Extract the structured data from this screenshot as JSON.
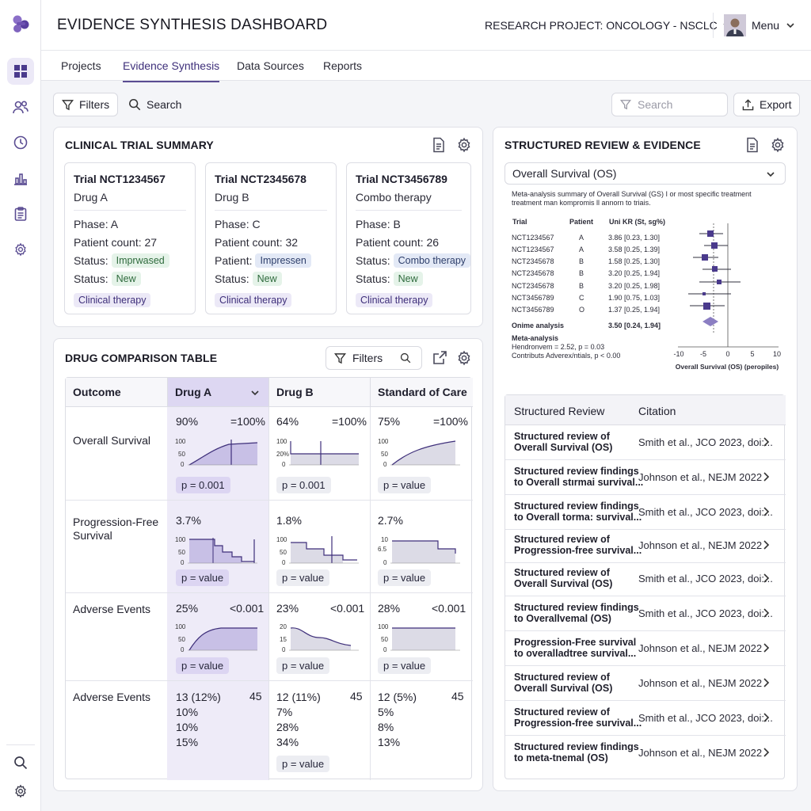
{
  "header": {
    "title": "EVIDENCE SYNTHESIS DASHBOARD",
    "project": "RESEARCH PROJECT: ONCOLOGY - NSCLC",
    "menu_label": "Menu"
  },
  "tabs": [
    {
      "label": "Projects"
    },
    {
      "label": "Evidence Synthesis"
    },
    {
      "label": "Data Sources"
    },
    {
      "label": "Reports"
    }
  ],
  "toolbar": {
    "filters_label": "Filters",
    "search_label": "Search",
    "search_placeholder": "Search",
    "export_label": "Export"
  },
  "trial_summary": {
    "title": "CLINICAL TRIAL SUMMARY",
    "cards": [
      {
        "trial": "Trial NCT1234567",
        "drug": "Drug A",
        "phase": "Phase: A",
        "patients": "Patient count: 27",
        "row3_label": "Status:",
        "row3_chip": "Imprwased",
        "row4_label": "Status:",
        "row4_chip": "New",
        "tag": "Clinical therapy"
      },
      {
        "trial": "Trial NCT2345678",
        "drug": "Drug B",
        "phase": "Phase: C",
        "patients": "Patient count: 32",
        "row3_label": "Patient:",
        "row3_chip": "Impressen",
        "row4_label": "Status:",
        "row4_chip": "New",
        "tag": "Clinical therapy"
      },
      {
        "trial": "Trial NCT3456789",
        "drug": "Combo therapy",
        "phase": "Phase: B",
        "patients": "Patient count: 26",
        "row3_label": "Status:",
        "row3_chip": "Combo therapy",
        "row4_label": "Status:",
        "row4_chip": "New",
        "tag": "Clinical therapy"
      }
    ]
  },
  "comparison": {
    "title": "DRUG COMPARISON TABLE",
    "filters_label": "Filters",
    "columns": [
      "Outcome",
      "Drug A",
      "Drug B",
      "Standard of Care"
    ],
    "rows": [
      {
        "outcome": "Overall Survival",
        "cells": [
          {
            "value": "90%",
            "right": "=100%",
            "y_top": "100",
            "y_mid": "50",
            "y_bot": "0",
            "p": "p = 0.001"
          },
          {
            "value": "64%",
            "right": "=100%",
            "y_top": "100",
            "y_mid": "20%",
            "y_bot": "0",
            "p": "p = 0.001"
          },
          {
            "value": "75%",
            "right": "=100%",
            "y_top": "100",
            "y_mid": "50",
            "y_bot": "0",
            "p": "p = value"
          }
        ]
      },
      {
        "outcome": "Progression-Free Survival",
        "cells": [
          {
            "value": "3.7%",
            "right": "",
            "y_top": "100",
            "y_mid": "50",
            "y_bot": "0",
            "p": "p = value"
          },
          {
            "value": "1.8%",
            "right": "",
            "y_top": "100",
            "y_mid": "50",
            "y_bot": "0",
            "p": "p = value"
          },
          {
            "value": "2.7%",
            "right": "",
            "y_top": "10",
            "y_mid": "6.5",
            "y_bot": "0",
            "p": "p = value"
          }
        ]
      },
      {
        "outcome": "Adverse Events",
        "cells": [
          {
            "value": "25%",
            "right": "<0.001",
            "y_top": "100",
            "y_mid": "50",
            "y_bot": "0",
            "p": "p = value"
          },
          {
            "value": "23%",
            "right": "<0.001",
            "y_top": "20",
            "y_mid": "15",
            "y_bot": "0",
            "p": "p = value"
          },
          {
            "value": "28%",
            "right": "<0.001",
            "y_top": "100",
            "y_mid": "50",
            "y_bot": "0",
            "p": "p = value"
          }
        ]
      },
      {
        "outcome": "Adverse Events",
        "cells": [
          {
            "lines": [
              "13 (12%)",
              "10%",
              "10%",
              "15%"
            ],
            "right": "45",
            "p": ""
          },
          {
            "lines": [
              "12 (11%)",
              "7%",
              "28%",
              "34%"
            ],
            "right": "45",
            "p": "p = value"
          },
          {
            "lines": [
              "12 (5%)",
              "5%",
              "8%",
              "13%"
            ],
            "right": "45",
            "p": ""
          }
        ]
      }
    ]
  },
  "review": {
    "title": "STRUCTURED REVIEW & EVIDENCE",
    "select_value": "Overall Survival (OS)",
    "description": "Meta-analysis summary of Overall Survival (GS) I or most specific treatment treatment man kompromis ll annorn to triais.",
    "forest_headers": {
      "trial": "Trial",
      "patient": "Patient",
      "effect": "Uni KR (St, sg%)"
    },
    "forest_rows": [
      {
        "trial": "NCT1234567",
        "patient": "A",
        "effect": "3.86 [0.23, 1.30]"
      },
      {
        "trial": "NCT1234567",
        "patient": "A",
        "effect": "3.58 [0.25, 1.39]"
      },
      {
        "trial": "NCT2345678",
        "patient": "B",
        "effect": "1.58 [0.25, 1.30]"
      },
      {
        "trial": "NCT2345678",
        "patient": "B",
        "effect": "3.20 [0.25, 1.94]"
      },
      {
        "trial": "NCT2345678",
        "patient": "B",
        "effect": "3.20 [0.25, 1.98]"
      },
      {
        "trial": "NCT3456789",
        "patient": "C",
        "effect": "1.90 [0.75, 1.03]"
      },
      {
        "trial": "NCT3456789",
        "patient": "O",
        "effect": "1.37 [0.25, 1.94]"
      }
    ],
    "overall": {
      "label": "Onime analysis",
      "effect": "3.50 [0.24, 1.94]"
    },
    "meta_lines": [
      "Meta-analysis",
      "Hendronvem = 2.52, p = 0.03",
      "Contributs Adverex/ntials, p < 0.00"
    ],
    "axis_ticks": [
      "-10",
      "-5",
      "0",
      "5",
      "10"
    ],
    "axis_label": "Overall Survival (OS) (peropiles)",
    "list_headers": {
      "review": "Structured Review",
      "citation": "Citation"
    },
    "items": [
      {
        "l1": "Structured review of",
        "l2": "Overall Survival (OS)",
        "citation": "Smith et al., JCO 2023, doi:..."
      },
      {
        "l1": "Structured review findings",
        "l2": "to Overall stırmai survival...",
        "citation": "Johnson et al., NEJM 2022"
      },
      {
        "l1": "Structured review findings",
        "l2": "to Overall torma: survival...",
        "citation": "Smith et al., JCO 2023, doi:..."
      },
      {
        "l1": "Structured review of",
        "l2": "Progression-free survival...",
        "citation": "Johnson et al., NEJM 2022"
      },
      {
        "l1": "Structured review of",
        "l2": "Overall Survival (OS)",
        "citation": "Smith et al., JCO 2023, doi:..."
      },
      {
        "l1": "Structured review findings",
        "l2": "to Overallvemal (OS)",
        "citation": "Smith et al., JCO 2023, doi:..."
      },
      {
        "l1": "Progression-Free survival",
        "l2": "to overalladtree survival...",
        "citation": "Johnson et al., NEJM 2022"
      },
      {
        "l1": "Structured review of",
        "l2": "Overall Survival (OS)",
        "citation": "Johnson et al., NEJM 2022"
      },
      {
        "l1": "Structured review of",
        "l2": "Progression-free survival...",
        "citation": "Smith et al., JCO 2023, doi:..."
      },
      {
        "l1": "Structured review findings",
        "l2": "to meta-tnemal (OS)",
        "citation": "Johnson et al., NEJM 2022"
      }
    ]
  },
  "colors": {
    "accent": "#5a4c92",
    "accent_light": "#eeebf8",
    "marker": "#4a3a8c"
  }
}
